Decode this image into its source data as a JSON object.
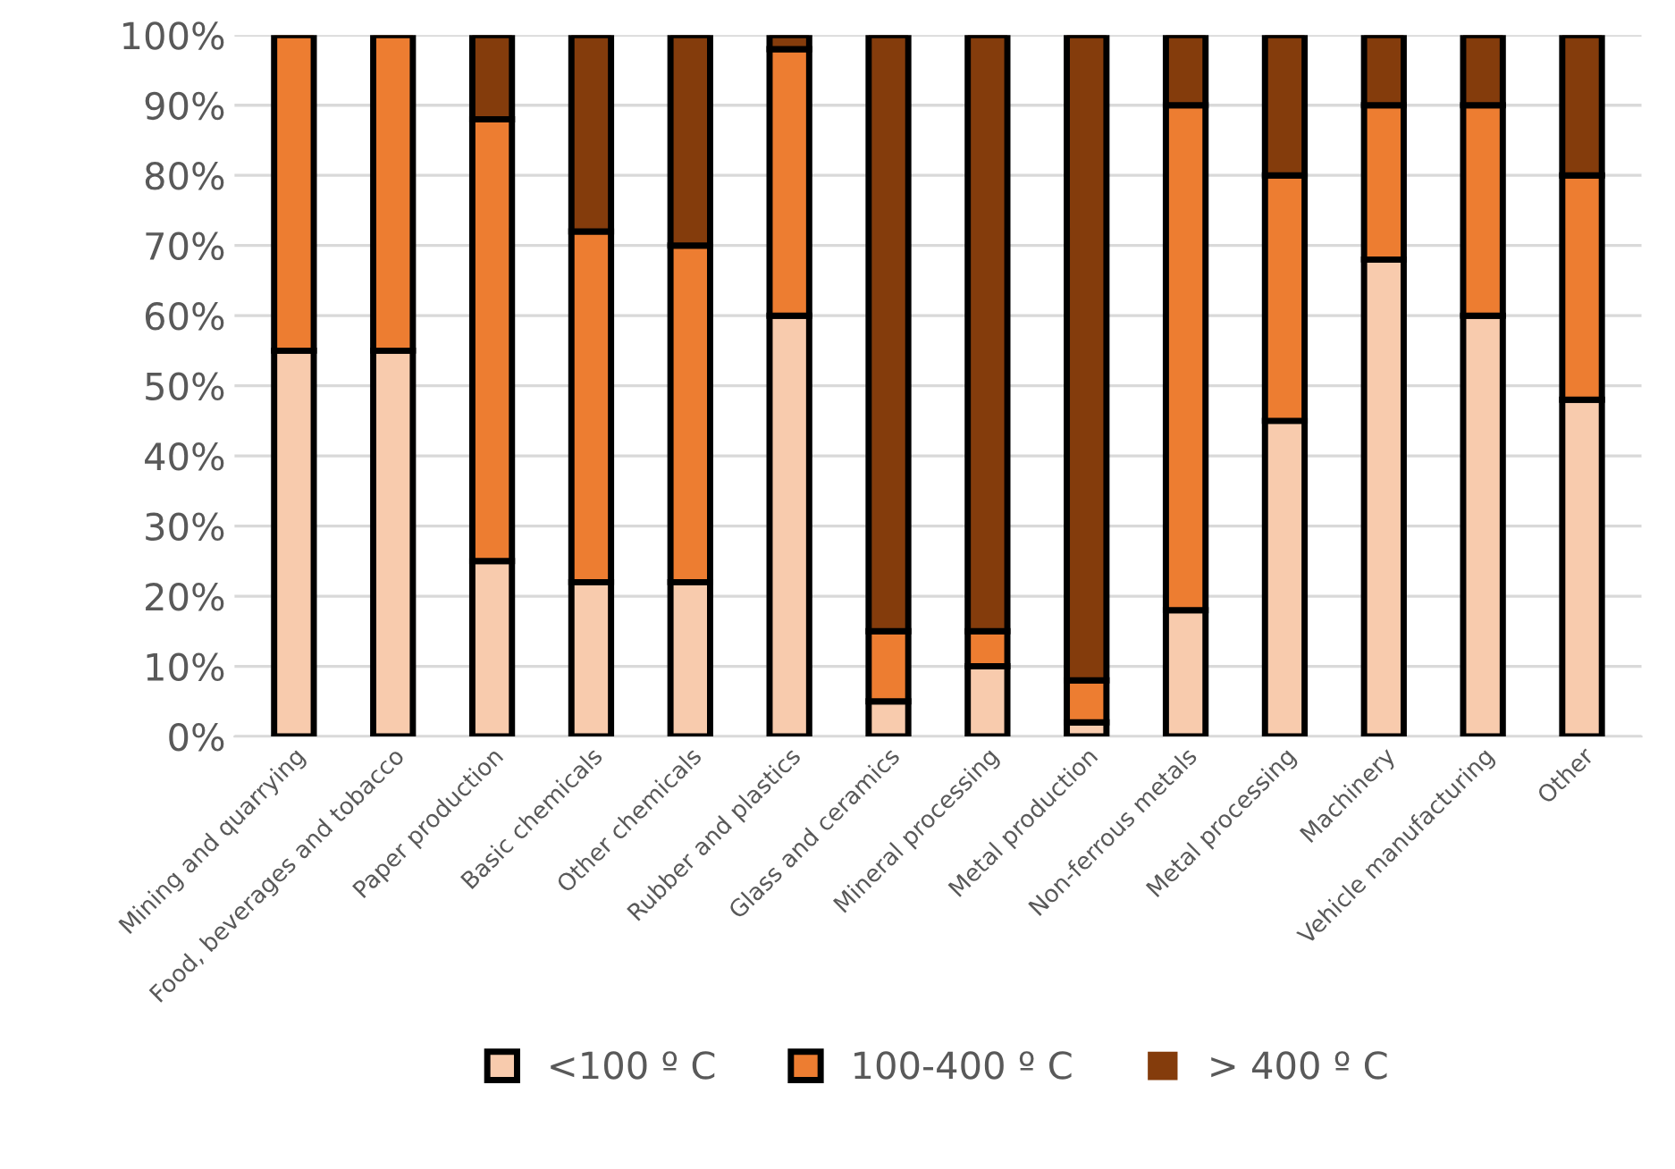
{
  "chart_data": {
    "type": "bar",
    "stacked": true,
    "categories": [
      "Mining and quarrying",
      "Food, beverages and tobacco",
      "Paper production",
      "Basic chemicals",
      "Other chemicals",
      "Rubber and plastics",
      "Glass and ceramics",
      "Mineral processing",
      "Metal production",
      "Non-ferrous metals",
      "Metal processing",
      "Machinery",
      "Vehicle manufacturing",
      "Other"
    ],
    "series": [
      {
        "name": "<100 º C",
        "color": "#f8cbad",
        "values": [
          55,
          55,
          25,
          22,
          22,
          60,
          5,
          10,
          2,
          18,
          45,
          68,
          60,
          48
        ]
      },
      {
        "name": "100-400 º C",
        "color": "#ed7d31",
        "values": [
          45,
          45,
          63,
          50,
          48,
          38,
          10,
          5,
          6,
          72,
          35,
          22,
          30,
          32
        ]
      },
      {
        "name": "> 400 º C",
        "color": "#843c0c",
        "values": [
          0,
          0,
          12,
          28,
          30,
          2,
          85,
          85,
          92,
          10,
          20,
          10,
          10,
          20
        ]
      }
    ],
    "ylim": [
      0,
      100
    ],
    "yticks": [
      {
        "value": 0,
        "label": "0%"
      },
      {
        "value": 10,
        "label": "10%"
      },
      {
        "value": 20,
        "label": "20%"
      },
      {
        "value": 30,
        "label": "30%"
      },
      {
        "value": 40,
        "label": "40%"
      },
      {
        "value": 50,
        "label": "50%"
      },
      {
        "value": 60,
        "label": "60%"
      },
      {
        "value": 70,
        "label": "70%"
      },
      {
        "value": 80,
        "label": "80%"
      },
      {
        "value": 90,
        "label": "90%"
      },
      {
        "value": 100,
        "label": "100%"
      }
    ],
    "grid": "y",
    "legend": "bottom"
  }
}
